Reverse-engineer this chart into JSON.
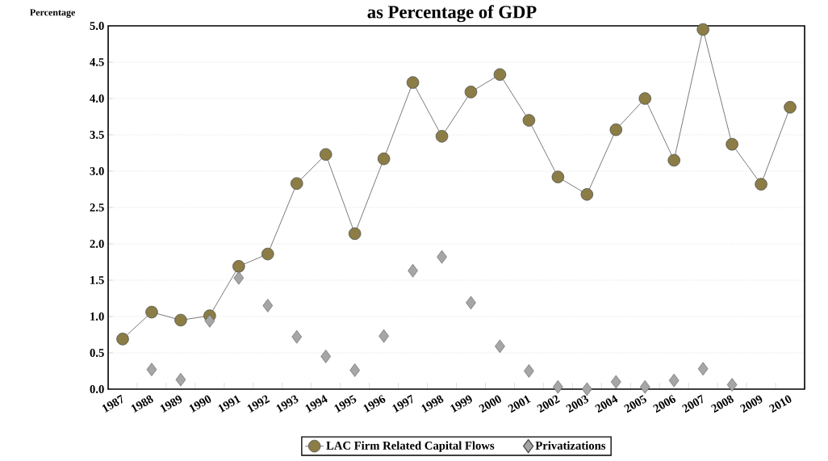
{
  "chart_data": {
    "type": "line",
    "title": "as Percentage of GDP",
    "ylabel": "Percentage",
    "categories": [
      "1987",
      "1988",
      "1989",
      "1990",
      "1991",
      "1992",
      "1993",
      "1994",
      "1995",
      "1996",
      "1997",
      "1998",
      "1999",
      "2000",
      "2001",
      "2002",
      "2003",
      "2004",
      "2005",
      "2006",
      "2007",
      "2008",
      "2009",
      "2010"
    ],
    "series": [
      {
        "name": "LAC Firm Related Capital Flows",
        "marker": "circle",
        "color": "#8b7d45",
        "values": [
          0.69,
          1.06,
          0.95,
          1.01,
          1.69,
          1.86,
          2.83,
          3.23,
          2.14,
          3.17,
          4.22,
          3.48,
          4.09,
          4.33,
          3.7,
          2.92,
          2.68,
          3.57,
          4.0,
          3.15,
          4.95,
          3.37,
          2.82,
          3.88
        ]
      },
      {
        "name": "Privatizations",
        "type": "scatter",
        "marker": "diamond",
        "color": "#a6a6a6",
        "values": [
          null,
          0.27,
          0.13,
          0.94,
          1.53,
          1.15,
          0.72,
          0.45,
          0.26,
          0.73,
          1.63,
          1.82,
          1.19,
          0.59,
          0.25,
          0.03,
          0.0,
          0.1,
          0.03,
          0.12,
          0.28,
          0.06,
          null,
          null
        ]
      }
    ],
    "ylim": [
      0,
      5
    ],
    "yticks": [
      {
        "value": 0,
        "label": "0.0"
      },
      {
        "value": 0.5,
        "label": "0.5"
      },
      {
        "value": 1,
        "label": "1.0"
      },
      {
        "value": 1.5,
        "label": "1.5"
      },
      {
        "value": 2,
        "label": "2.0"
      },
      {
        "value": 2.5,
        "label": "2.5"
      },
      {
        "value": 3,
        "label": "3.0"
      },
      {
        "value": 3.5,
        "label": "3.5"
      },
      {
        "value": 4,
        "label": "4.0"
      },
      {
        "value": 4.5,
        "label": "4.5"
      },
      {
        "value": 5,
        "label": "5.0"
      }
    ],
    "grid": "y",
    "legend": "bottom"
  }
}
